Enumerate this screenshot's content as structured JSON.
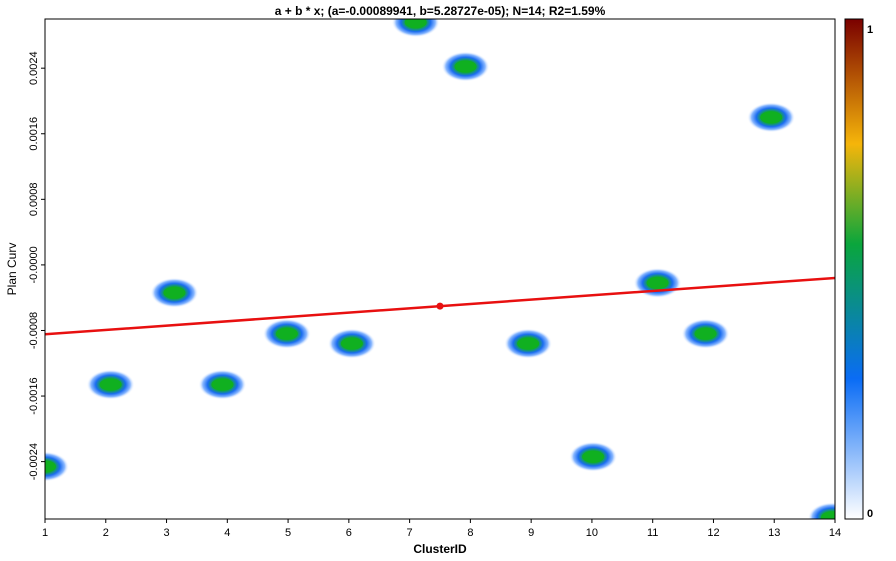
{
  "chart_data": {
    "type": "scatter",
    "title": "a + b * x; (a=-0.00089941, b=5.28727e-05); N=14; R2=1.59%",
    "xlabel": "ClusterID",
    "ylabel": "Plan Curv",
    "xlim": [
      1,
      14
    ],
    "ylim": [
      -0.0031,
      0.003
    ],
    "x_ticks": [
      1,
      2,
      3,
      4,
      5,
      6,
      7,
      8,
      9,
      10,
      11,
      12,
      13,
      14
    ],
    "x_tick_labels": [
      "1",
      "2",
      "3",
      "4",
      "5",
      "6",
      "7",
      "8",
      "9",
      "10",
      "11",
      "12",
      "13",
      "14"
    ],
    "y_ticks": [
      -0.0024,
      -0.0016,
      -0.0008,
      0.0,
      0.0008,
      0.0016,
      0.0024
    ],
    "y_tick_labels": [
      "-0.0024",
      "-0.0016",
      "-0.0008",
      "-0.0000",
      "0.0008",
      "0.0016",
      "0.0024"
    ],
    "points": [
      {
        "x": 1.0,
        "y": -0.00246
      },
      {
        "x": 2.08,
        "y": -0.00146
      },
      {
        "x": 3.13,
        "y": -0.00034
      },
      {
        "x": 3.92,
        "y": -0.00146
      },
      {
        "x": 4.98,
        "y": -0.00084
      },
      {
        "x": 6.05,
        "y": -0.00096
      },
      {
        "x": 7.1,
        "y": 0.00296
      },
      {
        "x": 7.92,
        "y": 0.00242
      },
      {
        "x": 8.95,
        "y": -0.00096
      },
      {
        "x": 10.02,
        "y": -0.00234
      },
      {
        "x": 11.08,
        "y": -0.00022
      },
      {
        "x": 11.87,
        "y": -0.00084
      },
      {
        "x": 12.95,
        "y": 0.0018
      },
      {
        "x": 13.95,
        "y": -0.00308
      }
    ],
    "regression": {
      "a": -0.00089941,
      "b": 5.28727e-05,
      "color": "#e81010"
    },
    "colorbar": {
      "min_label": "0",
      "max_label": "1",
      "colors": [
        "#ffffff",
        "#0a6cf5",
        "#0aa63c",
        "#f5b50a",
        "#7a0000"
      ]
    },
    "point_colors": {
      "core": "#10b020",
      "halo": "#1a6cf0"
    },
    "grid": false,
    "legend": "none"
  }
}
